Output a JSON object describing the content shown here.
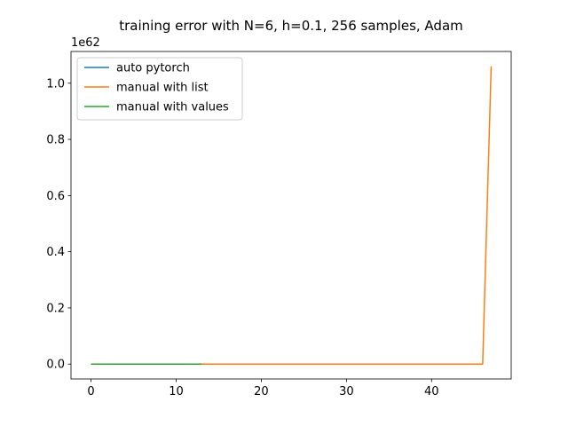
{
  "chart_data": {
    "type": "line",
    "title": "training error with N=6, h=0.1, 256 samples, Adam",
    "xlabel": "",
    "ylabel": "",
    "y_offset_text": "1e62",
    "xlim": [
      -2.35,
      49.35
    ],
    "ylim": [
      -0.053,
      1.113
    ],
    "y_scale_note": "y values in units of 1e62",
    "xticks": [
      0,
      10,
      20,
      30,
      40
    ],
    "xtick_labels": [
      "0",
      "10",
      "20",
      "30",
      "40"
    ],
    "yticks": [
      0.0,
      0.2,
      0.4,
      0.6,
      0.8,
      1.0
    ],
    "ytick_labels": [
      "0.0",
      "0.2",
      "0.4",
      "0.6",
      "0.8",
      "1.0"
    ],
    "grid": false,
    "legend_position": "upper-left",
    "series": [
      {
        "name": "auto pytorch",
        "color": "#1f77b4",
        "x": [
          0,
          13
        ],
        "y": [
          0,
          0
        ]
      },
      {
        "name": "manual with list",
        "color": "#ff7f0e",
        "x": [
          0,
          13,
          20,
          30,
          40,
          46,
          47
        ],
        "y": [
          0,
          0,
          0,
          0,
          0,
          0,
          1.06
        ]
      },
      {
        "name": "manual with values",
        "color": "#2ca02c",
        "x": [
          0,
          13
        ],
        "y": [
          0,
          0
        ]
      }
    ]
  }
}
